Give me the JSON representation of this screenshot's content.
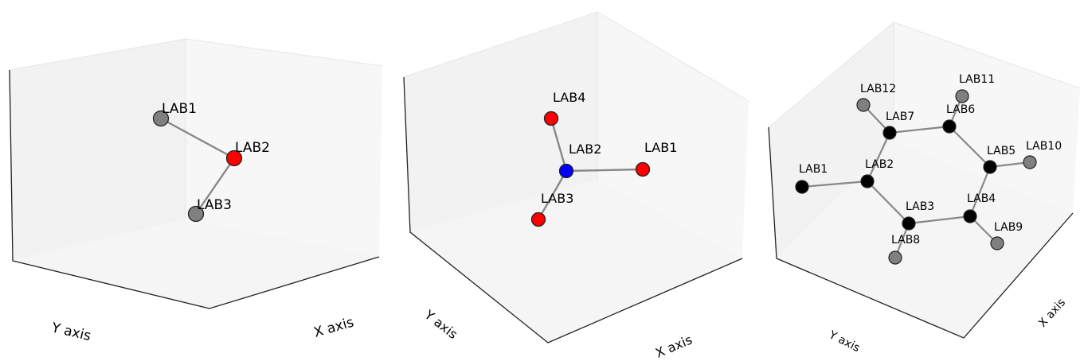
{
  "colors": {
    "pane_back": "#f2f2f2",
    "pane_side": "#f7f7f7",
    "pane_floor": "#f5f5f5",
    "pane_edge": "#e6e6e6",
    "axis_line": "#222222",
    "bond": "#888888",
    "node_outline": "#222222"
  },
  "panels": [
    {
      "axis_labels": {
        "x": "X axis",
        "y": "Y axis"
      },
      "nodes": [
        {
          "id": "LAB1",
          "label": "LAB1",
          "color": "#808080"
        },
        {
          "id": "LAB2",
          "label": "LAB2",
          "color": "#ff0000"
        },
        {
          "id": "LAB3",
          "label": "LAB3",
          "color": "#808080"
        }
      ],
      "edges": [
        [
          "LAB1",
          "LAB2"
        ],
        [
          "LAB2",
          "LAB3"
        ]
      ]
    },
    {
      "axis_labels": {
        "x": "X axis",
        "y": "Y axis"
      },
      "nodes": [
        {
          "id": "LAB1",
          "label": "LAB1",
          "color": "#ff0000"
        },
        {
          "id": "LAB2",
          "label": "LAB2",
          "color": "#0000ff"
        },
        {
          "id": "LAB3",
          "label": "LAB3",
          "color": "#ff0000"
        },
        {
          "id": "LAB4",
          "label": "LAB4",
          "color": "#ff0000"
        }
      ],
      "edges": [
        [
          "LAB1",
          "LAB2"
        ],
        [
          "LAB2",
          "LAB3"
        ],
        [
          "LAB2",
          "LAB4"
        ]
      ]
    },
    {
      "axis_labels": {
        "x": "X axis",
        "y": "Y axis"
      },
      "nodes": [
        {
          "id": "LAB1",
          "label": "LAB1",
          "color": "#000000"
        },
        {
          "id": "LAB2",
          "label": "LAB2",
          "color": "#000000"
        },
        {
          "id": "LAB3",
          "label": "LAB3",
          "color": "#000000"
        },
        {
          "id": "LAB4",
          "label": "LAB4",
          "color": "#000000"
        },
        {
          "id": "LAB5",
          "label": "LAB5",
          "color": "#000000"
        },
        {
          "id": "LAB6",
          "label": "LAB6",
          "color": "#000000"
        },
        {
          "id": "LAB7",
          "label": "LAB7",
          "color": "#000000"
        },
        {
          "id": "LAB8",
          "label": "LAB8",
          "color": "#808080"
        },
        {
          "id": "LAB9",
          "label": "LAB9",
          "color": "#808080"
        },
        {
          "id": "LAB10",
          "label": "LAB10",
          "color": "#808080"
        },
        {
          "id": "LAB11",
          "label": "LAB11",
          "color": "#808080"
        },
        {
          "id": "LAB12",
          "label": "LAB12",
          "color": "#808080"
        }
      ],
      "edges": [
        [
          "LAB1",
          "LAB2"
        ],
        [
          "LAB2",
          "LAB3"
        ],
        [
          "LAB3",
          "LAB4"
        ],
        [
          "LAB4",
          "LAB5"
        ],
        [
          "LAB5",
          "LAB6"
        ],
        [
          "LAB6",
          "LAB7"
        ],
        [
          "LAB7",
          "LAB2"
        ],
        [
          "LAB3",
          "LAB8"
        ],
        [
          "LAB4",
          "LAB9"
        ],
        [
          "LAB5",
          "LAB10"
        ],
        [
          "LAB6",
          "LAB11"
        ],
        [
          "LAB7",
          "LAB12"
        ]
      ]
    }
  ]
}
